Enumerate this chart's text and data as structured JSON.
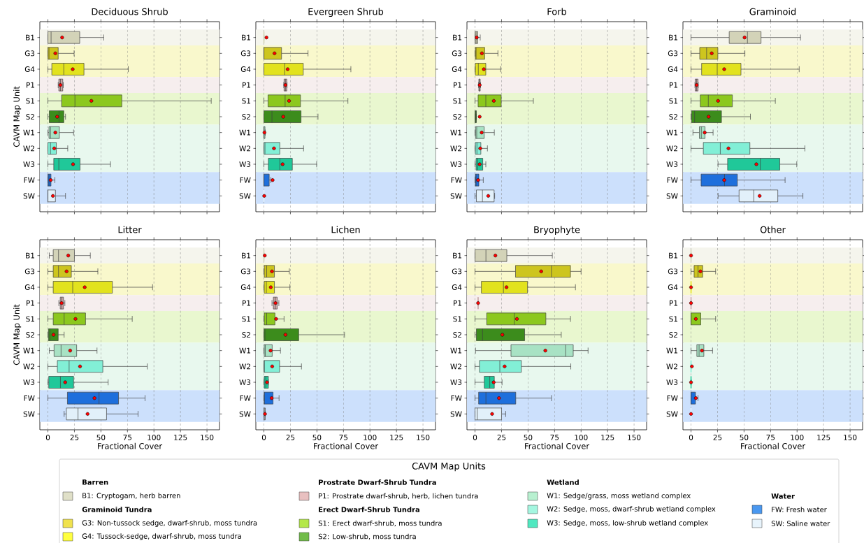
{
  "chart_data": [
    {
      "type": "box",
      "title": "Deciduous Shrub",
      "ylabel": "CAVM Map Unit",
      "orientation": "horizontal",
      "tick_labels": "y",
      "grid": "x",
      "xlim": [
        -7.6,
        161.8
      ],
      "xticks": [
        0,
        25,
        50,
        75,
        100,
        125,
        150
      ],
      "categories": [
        "B1",
        "G3",
        "G4",
        "P1",
        "S1",
        "S2",
        "W1",
        "W2",
        "W3",
        "FW",
        "SW"
      ],
      "colors": [
        "#d3d3b8",
        "#cdc51e",
        "#e2e21e",
        "#c9a8a8",
        "#8cc81e",
        "#3c8c1c",
        "#a8e2c4",
        "#82efd6",
        "#20c899",
        "#1e6fdc",
        "#e2f0fa"
      ],
      "bands": [
        {
          "axis": "y",
          "from": "B1",
          "to": "B1",
          "color": "#f5f5ed"
        },
        {
          "axis": "y",
          "from": "G3",
          "to": "G4",
          "color": "#f9f8cc"
        },
        {
          "axis": "y",
          "from": "P1",
          "to": "P1",
          "color": "#f6eeee"
        },
        {
          "axis": "y",
          "from": "S1",
          "to": "S2",
          "color": "#e9f7cf"
        },
        {
          "axis": "y",
          "from": "W1",
          "to": "W3",
          "color": "#e8f8ee"
        },
        {
          "axis": "y",
          "from": "FW",
          "to": "SW",
          "color": "#cce0fc"
        }
      ],
      "boxes": [
        {
          "low": 0,
          "q1": 0,
          "median": 3,
          "q3": 30,
          "high": 52.6,
          "mean": 13.4
        },
        {
          "low": 0,
          "q1": 0,
          "median": 1,
          "q3": 9.7,
          "high": 24.7,
          "mean": 7
        },
        {
          "low": 0,
          "q1": 3.7,
          "median": 15,
          "q3": 34,
          "high": 75.8,
          "mean": 23.4
        },
        {
          "low": 9.7,
          "q1": 10.3,
          "median": 11.8,
          "q3": 14,
          "high": 14.5,
          "mean": 11.8
        },
        {
          "low": 0,
          "q1": 12.9,
          "median": 25.5,
          "q3": 69.7,
          "high": 154,
          "mean": 41
        },
        {
          "low": 0,
          "q1": 1.3,
          "median": 10.5,
          "q3": 15,
          "high": 16.6,
          "mean": 8.7
        },
        {
          "low": 0,
          "q1": 1,
          "median": 2.4,
          "q3": 10.8,
          "high": 24.2,
          "mean": 7
        },
        {
          "low": 0,
          "q1": 0,
          "median": 2.4,
          "q3": 7.9,
          "high": 18.7,
          "mean": 6
        },
        {
          "low": 0,
          "q1": 5.5,
          "median": 10.3,
          "q3": 30.3,
          "high": 59,
          "mean": 23.7
        },
        {
          "low": 0,
          "q1": 0,
          "median": 1,
          "q3": 2.9,
          "high": 6.6,
          "mean": 2.6
        },
        {
          "low": 0,
          "q1": 0,
          "median": 0,
          "q3": 7.1,
          "high": 16.6,
          "mean": 4.7
        }
      ]
    },
    {
      "type": "box",
      "title": "Evergreen Shrub",
      "orientation": "horizontal",
      "tick_labels": "y",
      "grid": "x",
      "xlim": [
        -7.6,
        161.8
      ],
      "xticks": [
        0,
        25,
        50,
        75,
        100,
        125,
        150
      ],
      "categories": [
        "B1",
        "G3",
        "G4",
        "P1",
        "S1",
        "S2",
        "W1",
        "W2",
        "W3",
        "FW",
        "SW"
      ],
      "colors": [
        "#d3d3b8",
        "#cdc51e",
        "#e2e21e",
        "#c9a8a8",
        "#8cc81e",
        "#3c8c1c",
        "#a8e2c4",
        "#82efd6",
        "#20c899",
        "#1e6fdc",
        "#e2f0fa"
      ],
      "bands": [
        {
          "axis": "y",
          "from": "B1",
          "to": "B1",
          "color": "#f5f5ed"
        },
        {
          "axis": "y",
          "from": "G3",
          "to": "G4",
          "color": "#f9f8cc"
        },
        {
          "axis": "y",
          "from": "P1",
          "to": "P1",
          "color": "#f6eeee"
        },
        {
          "axis": "y",
          "from": "S1",
          "to": "S2",
          "color": "#e9f7cf"
        },
        {
          "axis": "y",
          "from": "W1",
          "to": "W3",
          "color": "#e8f8ee"
        },
        {
          "axis": "y",
          "from": "FW",
          "to": "SW",
          "color": "#cce0fc"
        }
      ],
      "boxes": [
        {
          "low": 0,
          "q1": 0,
          "median": 0,
          "q3": 0,
          "high": 0,
          "mean": 2.4
        },
        {
          "low": 0,
          "q1": 0,
          "median": 0,
          "q3": 16.6,
          "high": 41.6,
          "mean": 10
        },
        {
          "low": 0,
          "q1": 0,
          "median": 19.7,
          "q3": 37.1,
          "high": 82,
          "mean": 22.4
        },
        {
          "low": 18.7,
          "q1": 19,
          "median": 20.3,
          "q3": 21.6,
          "high": 21.8,
          "mean": 20.3
        },
        {
          "low": 0,
          "q1": 3.9,
          "median": 20,
          "q3": 34.5,
          "high": 79.2,
          "mean": 23.7
        },
        {
          "low": 0,
          "q1": 0,
          "median": 7.6,
          "q3": 35,
          "high": 51,
          "mean": 18.2
        },
        {
          "low": 0,
          "q1": 0,
          "median": 0,
          "q3": 1,
          "high": 1.3,
          "mean": 0.5
        },
        {
          "low": 0,
          "q1": 0,
          "median": 1,
          "q3": 15,
          "high": 37.4,
          "mean": 9.5
        },
        {
          "low": 0,
          "q1": 4.2,
          "median": 15,
          "q3": 26.8,
          "high": 49.7,
          "mean": 17.6
        },
        {
          "low": 0,
          "q1": 0,
          "median": 0,
          "q3": 5,
          "high": 6.6,
          "mean": 8.2
        },
        {
          "low": 0,
          "q1": 0,
          "median": 0,
          "q3": 0,
          "high": 0,
          "mean": 0.3
        }
      ]
    },
    {
      "type": "box",
      "title": "Forb",
      "orientation": "horizontal",
      "tick_labels": "y",
      "grid": "x",
      "xlim": [
        -7.6,
        161.8
      ],
      "xticks": [
        0,
        25,
        50,
        75,
        100,
        125,
        150
      ],
      "categories": [
        "B1",
        "G3",
        "G4",
        "P1",
        "S1",
        "S2",
        "W1",
        "W2",
        "W3",
        "FW",
        "SW"
      ],
      "colors": [
        "#d3d3b8",
        "#cdc51e",
        "#e2e21e",
        "#c9a8a8",
        "#8cc81e",
        "#3c8c1c",
        "#a8e2c4",
        "#82efd6",
        "#20c899",
        "#1e6fdc",
        "#e2f0fa"
      ],
      "bands": [
        {
          "axis": "y",
          "from": "B1",
          "to": "B1",
          "color": "#f5f5ed"
        },
        {
          "axis": "y",
          "from": "G3",
          "to": "G4",
          "color": "#f9f8cc"
        },
        {
          "axis": "y",
          "from": "P1",
          "to": "P1",
          "color": "#f6eeee"
        },
        {
          "axis": "y",
          "from": "S1",
          "to": "S2",
          "color": "#e9f7cf"
        },
        {
          "axis": "y",
          "from": "W1",
          "to": "W3",
          "color": "#e8f8ee"
        },
        {
          "axis": "y",
          "from": "FW",
          "to": "SW",
          "color": "#cce0fc"
        }
      ],
      "boxes": [
        {
          "low": 0,
          "q1": 0,
          "median": 1,
          "q3": 2.6,
          "high": 4.9,
          "mean": 1.6
        },
        {
          "low": 0,
          "q1": 0.3,
          "median": 1,
          "q3": 9.1,
          "high": 21.6,
          "mean": 6.5
        },
        {
          "low": 0,
          "q1": 0.3,
          "median": 3.1,
          "q3": 10.2,
          "high": 24.2,
          "mean": 8.3
        },
        {
          "low": 3.4,
          "q1": 3.6,
          "median": 4.2,
          "q3": 4.9,
          "high": 5.2,
          "mean": 4.4
        },
        {
          "low": 0,
          "q1": 2.9,
          "median": 10.2,
          "q3": 24.7,
          "high": 55,
          "mean": 17.7
        },
        {
          "low": 0,
          "q1": 0,
          "median": 0.5,
          "q3": 1.3,
          "high": 1.3,
          "mean": 4.4
        },
        {
          "low": 0,
          "q1": 0.5,
          "median": 1.6,
          "q3": 8.6,
          "high": 18.2,
          "mean": 6.3
        },
        {
          "low": 0,
          "q1": 0.3,
          "median": 1.8,
          "q3": 5.5,
          "high": 11.7,
          "mean": 4.9
        },
        {
          "low": 0,
          "q1": 1,
          "median": 2.6,
          "q3": 7.3,
          "high": 10.2,
          "mean": 4.4
        },
        {
          "low": 0,
          "q1": 0.3,
          "median": 1,
          "q3": 3.6,
          "high": 7.8,
          "mean": 2.9
        },
        {
          "low": 0,
          "q1": 1.3,
          "median": 7,
          "q3": 18,
          "high": 18.5,
          "mean": 12.5
        }
      ]
    },
    {
      "type": "box",
      "title": "Graminoid",
      "orientation": "horizontal",
      "tick_labels": "y",
      "grid": "x",
      "xlim": [
        -7.6,
        161.8
      ],
      "xticks": [
        0,
        25,
        50,
        75,
        100,
        125,
        150
      ],
      "categories": [
        "B1",
        "G3",
        "G4",
        "P1",
        "S1",
        "S2",
        "W1",
        "W2",
        "W3",
        "FW",
        "SW"
      ],
      "colors": [
        "#d3d3b8",
        "#cdc51e",
        "#e2e21e",
        "#c9a8a8",
        "#8cc81e",
        "#3c8c1c",
        "#a8e2c4",
        "#82efd6",
        "#20c899",
        "#1e6fdc",
        "#e2f0fa"
      ],
      "bands": [
        {
          "axis": "y",
          "from": "B1",
          "to": "B1",
          "color": "#f5f5ed"
        },
        {
          "axis": "y",
          "from": "G3",
          "to": "G4",
          "color": "#f9f8cc"
        },
        {
          "axis": "y",
          "from": "P1",
          "to": "P1",
          "color": "#f6eeee"
        },
        {
          "axis": "y",
          "from": "S1",
          "to": "S2",
          "color": "#e9f7cf"
        },
        {
          "axis": "y",
          "from": "W1",
          "to": "W3",
          "color": "#e8f8ee"
        },
        {
          "axis": "y",
          "from": "FW",
          "to": "SW",
          "color": "#cce0fc"
        }
      ],
      "boxes": [
        {
          "low": 0,
          "q1": 36,
          "median": 53.2,
          "q3": 66,
          "high": 103.2,
          "mean": 50.5
        },
        {
          "low": 0,
          "q1": 8.2,
          "median": 14.7,
          "q3": 25.3,
          "high": 50.8,
          "mean": 19.5
        },
        {
          "low": 0,
          "q1": 10,
          "median": 24.7,
          "q3": 47.1,
          "high": 102,
          "mean": 31.3
        },
        {
          "low": 3.7,
          "q1": 3.9,
          "median": 5.3,
          "q3": 6.6,
          "high": 6.8,
          "mean": 5.3
        },
        {
          "low": 0,
          "q1": 8.7,
          "median": 16.3,
          "q3": 39,
          "high": 79.5,
          "mean": 25.5
        },
        {
          "low": 0,
          "q1": 0.5,
          "median": 3.4,
          "q3": 28.7,
          "high": 56,
          "mean": 16.6
        },
        {
          "low": 1.8,
          "q1": 7.9,
          "median": 9.7,
          "q3": 13.2,
          "high": 20.8,
          "mean": 12.9
        },
        {
          "low": 0,
          "q1": 11.6,
          "median": 27.6,
          "q3": 55.5,
          "high": 107.4,
          "mean": 35.3
        },
        {
          "low": 25.5,
          "q1": 34.5,
          "median": 65.3,
          "q3": 83.7,
          "high": 99.7,
          "mean": 61.6
        },
        {
          "low": 0,
          "q1": 9.5,
          "median": 31.6,
          "q3": 43.7,
          "high": 88.7,
          "mean": 31.3
        },
        {
          "low": 25.5,
          "q1": 45.3,
          "median": 59.2,
          "q3": 81.8,
          "high": 105.5,
          "mean": 64.7
        }
      ]
    },
    {
      "type": "box",
      "title": "Litter",
      "xlabel": "Fractional Cover",
      "ylabel": "CAVM Map Unit",
      "orientation": "horizontal",
      "grid": "x",
      "xlim": [
        -7.6,
        161.8
      ],
      "xticks": [
        0,
        25,
        50,
        75,
        100,
        125,
        150
      ],
      "categories": [
        "B1",
        "G3",
        "G4",
        "P1",
        "S1",
        "S2",
        "W1",
        "W2",
        "W3",
        "FW",
        "SW"
      ],
      "colors": [
        "#d3d3b8",
        "#cdc51e",
        "#e2e21e",
        "#c9a8a8",
        "#8cc81e",
        "#3c8c1c",
        "#a8e2c4",
        "#82efd6",
        "#20c899",
        "#1e6fdc",
        "#e2f0fa"
      ],
      "bands": [
        {
          "axis": "y",
          "from": "B1",
          "to": "B1",
          "color": "#f5f5ed"
        },
        {
          "axis": "y",
          "from": "G3",
          "to": "G4",
          "color": "#f9f8cc"
        },
        {
          "axis": "y",
          "from": "P1",
          "to": "P1",
          "color": "#f6eeee"
        },
        {
          "axis": "y",
          "from": "S1",
          "to": "S2",
          "color": "#e9f7cf"
        },
        {
          "axis": "y",
          "from": "W1",
          "to": "W3",
          "color": "#e8f8ee"
        },
        {
          "axis": "y",
          "from": "FW",
          "to": "SW",
          "color": "#cce0fc"
        }
      ],
      "boxes": [
        {
          "low": 1.3,
          "q1": 5,
          "median": 10,
          "q3": 25,
          "high": 40,
          "mean": 19.2
        },
        {
          "low": 0,
          "q1": 5,
          "median": 10,
          "q3": 22.1,
          "high": 47.1,
          "mean": 17.6
        },
        {
          "low": 0,
          "q1": 5,
          "median": 23.4,
          "q3": 60.8,
          "high": 98.7,
          "mean": 34.7
        },
        {
          "low": 10.3,
          "q1": 11.6,
          "median": 13.2,
          "q3": 14.7,
          "high": 16,
          "mean": 12.9
        },
        {
          "low": 0,
          "q1": 5,
          "median": 15.3,
          "q3": 35.5,
          "high": 79.5,
          "mean": 26
        },
        {
          "low": 0,
          "q1": 0.5,
          "median": 1.8,
          "q3": 9.7,
          "high": 15.3,
          "mean": 5.3
        },
        {
          "low": 1.3,
          "q1": 5.8,
          "median": 12.4,
          "q3": 27.1,
          "high": 46.3,
          "mean": 21
        },
        {
          "low": 0,
          "q1": 8.9,
          "median": 20,
          "q3": 51.8,
          "high": 93.7,
          "mean": 30.3
        },
        {
          "low": 0,
          "q1": 0.8,
          "median": 11.8,
          "q3": 24.2,
          "high": 56.8,
          "mean": 16.3
        },
        {
          "low": 0,
          "q1": 18.4,
          "median": 48.2,
          "q3": 66.6,
          "high": 91.6,
          "mean": 43.9
        },
        {
          "low": 15.3,
          "q1": 17.4,
          "median": 28.4,
          "q3": 55.3,
          "high": 85,
          "mean": 37.4
        }
      ]
    },
    {
      "type": "box",
      "title": "Lichen",
      "xlabel": "Fractional Cover",
      "orientation": "horizontal",
      "grid": "x",
      "xlim": [
        -7.6,
        161.8
      ],
      "xticks": [
        0,
        25,
        50,
        75,
        100,
        125,
        150
      ],
      "categories": [
        "B1",
        "G3",
        "G4",
        "P1",
        "S1",
        "S2",
        "W1",
        "W2",
        "W3",
        "FW",
        "SW"
      ],
      "colors": [
        "#d3d3b8",
        "#cdc51e",
        "#e2e21e",
        "#c9a8a8",
        "#8cc81e",
        "#3c8c1c",
        "#a8e2c4",
        "#82efd6",
        "#20c899",
        "#1e6fdc",
        "#e2f0fa"
      ],
      "bands": [
        {
          "axis": "y",
          "from": "B1",
          "to": "B1",
          "color": "#f5f5ed"
        },
        {
          "axis": "y",
          "from": "G3",
          "to": "G4",
          "color": "#f9f8cc"
        },
        {
          "axis": "y",
          "from": "P1",
          "to": "P1",
          "color": "#f6eeee"
        },
        {
          "axis": "y",
          "from": "S1",
          "to": "S2",
          "color": "#e9f7cf"
        },
        {
          "axis": "y",
          "from": "W1",
          "to": "W3",
          "color": "#e8f8ee"
        },
        {
          "axis": "y",
          "from": "FW",
          "to": "SW",
          "color": "#cce0fc"
        }
      ],
      "boxes": [
        {
          "low": 0,
          "q1": 0,
          "median": 0,
          "q3": 0,
          "high": 0,
          "mean": 0.8
        },
        {
          "low": 0,
          "q1": 0.3,
          "median": 2.6,
          "q3": 9.9,
          "high": 24,
          "mean": 7.6
        },
        {
          "low": 0,
          "q1": 0.3,
          "median": 2.3,
          "q3": 9.9,
          "high": 24.5,
          "mean": 6.5
        },
        {
          "low": 7.6,
          "q1": 8.9,
          "median": 10.7,
          "q3": 12.5,
          "high": 14.1,
          "mean": 10.9
        },
        {
          "low": 0,
          "q1": 0.3,
          "median": 2.6,
          "q3": 10.4,
          "high": 19,
          "mean": 11.5
        },
        {
          "low": 0,
          "q1": 0,
          "median": 1,
          "q3": 32.8,
          "high": 76,
          "mean": 20.3
        },
        {
          "low": 0,
          "q1": 0.3,
          "median": 1.3,
          "q3": 7.8,
          "high": 15.6,
          "mean": 6.3
        },
        {
          "low": 0,
          "q1": 0,
          "median": 0.5,
          "q3": 14.8,
          "high": 35.4,
          "mean": 7.8
        },
        {
          "low": 0,
          "q1": 0.3,
          "median": 1.8,
          "q3": 4.2,
          "high": 4.2,
          "mean": 2.9
        },
        {
          "low": 0,
          "q1": 0.3,
          "median": 0.3,
          "q3": 8.6,
          "high": 14.3,
          "mean": 7.3
        },
        {
          "low": 0,
          "q1": 0,
          "median": 0.5,
          "q3": 1.3,
          "high": 1.3,
          "mean": 1
        }
      ]
    },
    {
      "type": "box",
      "title": "Bryophyte",
      "xlabel": "Fractional Cover",
      "orientation": "horizontal",
      "grid": "x",
      "xlim": [
        -7.6,
        161.8
      ],
      "xticks": [
        0,
        25,
        50,
        75,
        100,
        125,
        150
      ],
      "categories": [
        "B1",
        "G3",
        "G4",
        "P1",
        "S1",
        "S2",
        "W1",
        "W2",
        "W3",
        "FW",
        "SW"
      ],
      "colors": [
        "#d3d3b8",
        "#cdc51e",
        "#e2e21e",
        "#c9a8a8",
        "#8cc81e",
        "#3c8c1c",
        "#a8e2c4",
        "#82efd6",
        "#20c899",
        "#1e6fdc",
        "#e2f0fa"
      ],
      "bands": [
        {
          "axis": "y",
          "from": "B1",
          "to": "B1",
          "color": "#f5f5ed"
        },
        {
          "axis": "y",
          "from": "G3",
          "to": "G4",
          "color": "#f9f8cc"
        },
        {
          "axis": "y",
          "from": "P1",
          "to": "P1",
          "color": "#f6eeee"
        },
        {
          "axis": "y",
          "from": "S1",
          "to": "S2",
          "color": "#e9f7cf"
        },
        {
          "axis": "y",
          "from": "W1",
          "to": "W3",
          "color": "#e8f8ee"
        },
        {
          "axis": "y",
          "from": "FW",
          "to": "SW",
          "color": "#cce0fc"
        }
      ],
      "boxes": [
        {
          "low": 0,
          "q1": 0,
          "median": 10.3,
          "q3": 30,
          "high": 72.9,
          "mean": 19.2
        },
        {
          "low": 0,
          "q1": 38.2,
          "median": 72.1,
          "q3": 90,
          "high": 100,
          "mean": 62.4
        },
        {
          "low": 0,
          "q1": 6,
          "median": 26.8,
          "q3": 49.5,
          "high": 94.7,
          "mean": 29.7
        },
        {
          "low": 2.9,
          "q1": 2.9,
          "median": 2.9,
          "q3": 2.9,
          "high": 2.9,
          "mean": 2.9
        },
        {
          "low": 0,
          "q1": 11,
          "median": 37.1,
          "q3": 66.8,
          "high": 90,
          "mean": 39.5
        },
        {
          "low": 0,
          "q1": 1.3,
          "median": 7.1,
          "q3": 46.8,
          "high": 81.3,
          "mean": 25.8
        },
        {
          "low": 0.5,
          "q1": 33.9,
          "median": 85.5,
          "q3": 92.6,
          "high": 106.6,
          "mean": 66.3
        },
        {
          "low": 0,
          "q1": 4.2,
          "median": 23.4,
          "q3": 43.7,
          "high": 90.3,
          "mean": 27.9
        },
        {
          "low": 0,
          "q1": 8.7,
          "median": 13.9,
          "q3": 18.2,
          "high": 25.5,
          "mean": 17.6
        },
        {
          "low": 0,
          "q1": 3.4,
          "median": 10.3,
          "q3": 38.4,
          "high": 72.1,
          "mean": 22.6
        },
        {
          "low": 0,
          "q1": 0,
          "median": 2.1,
          "q3": 25,
          "high": 28.9,
          "mean": 16.1
        }
      ]
    },
    {
      "type": "box",
      "title": "Other",
      "xlabel": "Fractional Cover",
      "orientation": "horizontal",
      "grid": "x",
      "xlim": [
        -7.6,
        161.8
      ],
      "xticks": [
        0,
        25,
        50,
        75,
        100,
        125,
        150
      ],
      "categories": [
        "B1",
        "G3",
        "G4",
        "P1",
        "S1",
        "S2",
        "W1",
        "W2",
        "W3",
        "FW",
        "SW"
      ],
      "colors": [
        "#d3d3b8",
        "#cdc51e",
        "#e2e21e",
        "#c9a8a8",
        "#8cc81e",
        "#3c8c1c",
        "#a8e2c4",
        "#82efd6",
        "#20c899",
        "#1e6fdc",
        "#e2f0fa"
      ],
      "bands": [
        {
          "axis": "y",
          "from": "B1",
          "to": "B1",
          "color": "#f5f5ed"
        },
        {
          "axis": "y",
          "from": "G3",
          "to": "G4",
          "color": "#f9f8cc"
        },
        {
          "axis": "y",
          "from": "P1",
          "to": "P1",
          "color": "#f6eeee"
        },
        {
          "axis": "y",
          "from": "S1",
          "to": "S2",
          "color": "#e9f7cf"
        },
        {
          "axis": "y",
          "from": "W1",
          "to": "W3",
          "color": "#e8f8ee"
        },
        {
          "axis": "y",
          "from": "FW",
          "to": "SW",
          "color": "#cce0fc"
        }
      ],
      "boxes": [
        {
          "low": 0,
          "q1": 0,
          "median": 0,
          "q3": 0,
          "high": 0,
          "mean": 0
        },
        {
          "low": 0,
          "q1": 2.9,
          "median": 6.6,
          "q3": 11,
          "high": 23.2,
          "mean": 8.9
        },
        {
          "low": 0,
          "q1": 0,
          "median": 0,
          "q3": 0,
          "high": 0,
          "mean": 0
        },
        {
          "low": 0,
          "q1": 0,
          "median": 0,
          "q3": 0,
          "high": 0,
          "mean": 0
        },
        {
          "low": 0,
          "q1": 0,
          "median": 0,
          "q3": 9.2,
          "high": 23.2,
          "mean": 4.5
        },
        null,
        {
          "low": 0,
          "q1": 5.5,
          "median": 7.6,
          "q3": 12.1,
          "high": 20.3,
          "mean": 10.3
        },
        {
          "low": 0,
          "q1": 0,
          "median": 0,
          "q3": 0,
          "high": 0,
          "mean": 0.8
        },
        {
          "low": 0,
          "q1": 0,
          "median": 0,
          "q3": 0,
          "high": 0,
          "mean": 0
        },
        {
          "low": 0,
          "q1": 0,
          "median": 0,
          "q3": 4.2,
          "high": 6.6,
          "mean": 4.5
        },
        {
          "low": 0,
          "q1": 0,
          "median": 0,
          "q3": 0,
          "high": 0,
          "mean": 0
        }
      ]
    },
    {
      "type": "other",
      "title": "CAVM Map Units",
      "categories": [
        "B1: Cryptogam, herb barren",
        "G3: Non-tussock sedge, dwarf-shrub, moss tundra",
        "G4: Tussock-sedge, dwarf-shrub, moss tundra",
        "P1: Prostrate dwarf-shrub, herb, lichen tundra",
        "S1: Erect dwarf-shrub, moss tundra",
        "S2: Low-shrub, moss tundra",
        "W1: Sedge/grass, moss wetland complex",
        "W2: Sedge, moss, dwarf-shrub wetland complex",
        "W3: Sedge, moss, low-shrub wetland complex",
        "FW: Fresh water",
        "SW: Saline water"
      ],
      "colors": [
        "#e0e0c8",
        "#f0e24e",
        "#ffff40",
        "#e8c0c0",
        "#b4e84a",
        "#72bc4a",
        "#b8f0d0",
        "#a4f6e0",
        "#50e8c0",
        "#4a98f0",
        "#e8f4fc"
      ],
      "annotations": [
        "Barren",
        "Graminoid Tundra",
        "Prostrate Dwarf-Shrub Tundra",
        "Erect Dwarf-Shrub Tundra",
        "Wetland",
        "Water"
      ]
    }
  ]
}
